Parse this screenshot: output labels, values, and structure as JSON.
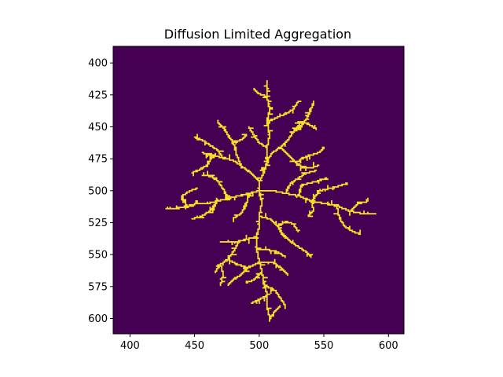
{
  "chart_data": {
    "type": "heatmap",
    "title": "Diffusion Limited Aggregation",
    "xlabel": "",
    "ylabel": "",
    "xlim": [
      387,
      612
    ],
    "ylim": [
      612,
      387
    ],
    "x_ticks": [
      400,
      450,
      500,
      550,
      600
    ],
    "y_ticks": [
      400,
      425,
      450,
      475,
      500,
      525,
      550,
      575,
      600
    ],
    "grid": false,
    "colors": {
      "background": "#440154",
      "aggregate": "#fde725",
      "axes": "#000000"
    },
    "seed_point": [
      500,
      500
    ],
    "aggregate_branches": [
      [
        [
          500,
          500
        ],
        [
          500,
          492
        ],
        [
          504,
          484
        ],
        [
          506,
          476
        ],
        [
          506,
          466
        ],
        [
          508,
          456
        ],
        [
          506,
          446
        ],
        [
          508,
          436
        ],
        [
          506,
          426
        ],
        [
          506,
          414
        ]
      ],
      [
        [
          506,
          476
        ],
        [
          510,
          470
        ],
        [
          516,
          466
        ],
        [
          522,
          460
        ],
        [
          526,
          454
        ],
        [
          532,
          446
        ]
      ],
      [
        [
          526,
          454
        ],
        [
          532,
          450
        ],
        [
          536,
          444
        ],
        [
          540,
          436
        ],
        [
          542,
          430
        ]
      ],
      [
        [
          532,
          446
        ],
        [
          538,
          448
        ],
        [
          544,
          452
        ]
      ],
      [
        [
          506,
          466
        ],
        [
          500,
          462
        ],
        [
          496,
          456
        ],
        [
          492,
          450
        ]
      ],
      [
        [
          506,
          446
        ],
        [
          514,
          442
        ],
        [
          520,
          440
        ],
        [
          526,
          436
        ],
        [
          530,
          430
        ]
      ],
      [
        [
          516,
          466
        ],
        [
          522,
          472
        ],
        [
          528,
          478
        ],
        [
          534,
          482
        ],
        [
          540,
          482
        ],
        [
          546,
          480
        ]
      ],
      [
        [
          528,
          478
        ],
        [
          534,
          474
        ],
        [
          540,
          472
        ],
        [
          546,
          470
        ],
        [
          550,
          466
        ]
      ],
      [
        [
          506,
          426
        ],
        [
          500,
          424
        ],
        [
          496,
          420
        ]
      ],
      [
        [
          500,
          492
        ],
        [
          494,
          486
        ],
        [
          486,
          480
        ],
        [
          480,
          476
        ],
        [
          472,
          474
        ],
        [
          464,
          472
        ],
        [
          456,
          470
        ]
      ],
      [
        [
          486,
          480
        ],
        [
          482,
          470
        ],
        [
          480,
          462
        ],
        [
          476,
          456
        ],
        [
          472,
          450
        ],
        [
          468,
          446
        ]
      ],
      [
        [
          480,
          462
        ],
        [
          486,
          460
        ],
        [
          490,
          456
        ]
      ],
      [
        [
          472,
          474
        ],
        [
          468,
          468
        ],
        [
          462,
          464
        ],
        [
          456,
          460
        ],
        [
          450,
          458
        ]
      ],
      [
        [
          464,
          472
        ],
        [
          460,
          480
        ],
        [
          454,
          484
        ],
        [
          448,
          486
        ]
      ],
      [
        [
          500,
          500
        ],
        [
          492,
          502
        ],
        [
          484,
          504
        ],
        [
          476,
          506
        ],
        [
          468,
          508
        ],
        [
          460,
          510
        ],
        [
          452,
          510
        ],
        [
          444,
          512
        ],
        [
          436,
          514
        ],
        [
          428,
          514
        ]
      ],
      [
        [
          476,
          506
        ],
        [
          472,
          498
        ],
        [
          468,
          492
        ],
        [
          462,
          488
        ],
        [
          456,
          488
        ]
      ],
      [
        [
          468,
          508
        ],
        [
          462,
          516
        ],
        [
          456,
          520
        ],
        [
          448,
          522
        ]
      ],
      [
        [
          444,
          512
        ],
        [
          440,
          504
        ],
        [
          446,
          500
        ],
        [
          452,
          498
        ]
      ],
      [
        [
          492,
          502
        ],
        [
          490,
          512
        ],
        [
          486,
          518
        ],
        [
          480,
          522
        ]
      ],
      [
        [
          500,
          500
        ],
        [
          510,
          500
        ],
        [
          520,
          502
        ],
        [
          530,
          504
        ],
        [
          540,
          508
        ],
        [
          550,
          510
        ],
        [
          560,
          512
        ],
        [
          570,
          516
        ],
        [
          580,
          518
        ],
        [
          590,
          518
        ]
      ],
      [
        [
          520,
          502
        ],
        [
          524,
          494
        ],
        [
          530,
          490
        ],
        [
          536,
          486
        ],
        [
          544,
          484
        ]
      ],
      [
        [
          530,
          504
        ],
        [
          532,
          496
        ],
        [
          538,
          494
        ],
        [
          546,
          492
        ],
        [
          552,
          490
        ]
      ],
      [
        [
          540,
          508
        ],
        [
          546,
          500
        ],
        [
          554,
          498
        ],
        [
          562,
          496
        ],
        [
          568,
          494
        ]
      ],
      [
        [
          560,
          512
        ],
        [
          562,
          522
        ],
        [
          566,
          528
        ],
        [
          572,
          532
        ],
        [
          578,
          534
        ]
      ],
      [
        [
          570,
          516
        ],
        [
          576,
          510
        ],
        [
          584,
          508
        ]
      ],
      [
        [
          540,
          508
        ],
        [
          542,
          516
        ],
        [
          538,
          520
        ]
      ],
      [
        [
          500,
          500
        ],
        [
          502,
          510
        ],
        [
          500,
          520
        ],
        [
          500,
          528
        ],
        [
          498,
          536
        ],
        [
          498,
          546
        ],
        [
          500,
          556
        ],
        [
          502,
          564
        ],
        [
          504,
          574
        ],
        [
          506,
          582
        ],
        [
          506,
          592
        ],
        [
          508,
          600
        ]
      ],
      [
        [
          500,
          520
        ],
        [
          508,
          522
        ],
        [
          514,
          528
        ],
        [
          518,
          534
        ],
        [
          524,
          540
        ],
        [
          530,
          544
        ],
        [
          536,
          548
        ],
        [
          540,
          552
        ]
      ],
      [
        [
          514,
          528
        ],
        [
          520,
          524
        ],
        [
          526,
          526
        ],
        [
          530,
          532
        ]
      ],
      [
        [
          498,
          536
        ],
        [
          490,
          538
        ],
        [
          484,
          540
        ],
        [
          476,
          540
        ],
        [
          470,
          540
        ]
      ],
      [
        [
          484,
          540
        ],
        [
          480,
          548
        ],
        [
          476,
          554
        ],
        [
          470,
          558
        ],
        [
          466,
          564
        ]
      ],
      [
        [
          476,
          554
        ],
        [
          484,
          558
        ],
        [
          490,
          560
        ]
      ],
      [
        [
          470,
          558
        ],
        [
          472,
          566
        ],
        [
          470,
          574
        ]
      ],
      [
        [
          500,
          556
        ],
        [
          492,
          560
        ],
        [
          486,
          566
        ],
        [
          480,
          570
        ],
        [
          476,
          574
        ]
      ],
      [
        [
          500,
          556
        ],
        [
          510,
          556
        ],
        [
          516,
          560
        ],
        [
          522,
          566
        ]
      ],
      [
        [
          504,
          574
        ],
        [
          512,
          578
        ],
        [
          516,
          584
        ],
        [
          520,
          590
        ]
      ],
      [
        [
          506,
          582
        ],
        [
          498,
          586
        ],
        [
          494,
          588
        ]
      ],
      [
        [
          502,
          564
        ],
        [
          496,
          570
        ],
        [
          490,
          572
        ]
      ],
      [
        [
          508,
          600
        ],
        [
          512,
          594
        ],
        [
          516,
          590
        ]
      ],
      [
        [
          498,
          546
        ],
        [
          506,
          546
        ],
        [
          514,
          548
        ],
        [
          520,
          552
        ]
      ]
    ]
  }
}
